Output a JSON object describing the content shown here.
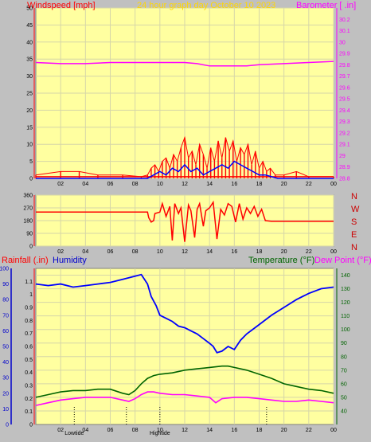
{
  "header": {
    "windspeed_label": "Windspeed [mph]",
    "title": "24 hour graph day   October 10 2023",
    "barometer_label": "Barometer [ .in]"
  },
  "colors": {
    "background": "#c0c0c0",
    "plot_bg": "#ffffa0",
    "grid": "#d6d6a8",
    "windspeed": "#ff0000",
    "windspeed_avg": "#0000ff",
    "barometer": "#ff00ff",
    "rainfall": "#ff0000",
    "humidity": "#0000ff",
    "temperature": "#006400",
    "dew_point": "#ff00ff",
    "title_yellow": "#ffd700"
  },
  "bottom": {
    "rainfall_label": "Rainfall (.in)",
    "humidity_label": "Humidity",
    "temperature_label": "Temperature (°F)",
    "dew_point_label": "Dew Point (°F)",
    "lowtide_label": "Lowtide",
    "hightide_label": "Hightide"
  },
  "chart_data": [
    {
      "type": "line",
      "name": "Windspeed / Barometer",
      "x_ticks": [
        "02",
        "04",
        "06",
        "08",
        "10",
        "12",
        "14",
        "16",
        "18",
        "20",
        "22",
        "00"
      ],
      "y_left": {
        "label": "Windspeed [mph]",
        "lim": [
          0,
          50
        ],
        "ticks": [
          0,
          5,
          10,
          15,
          20,
          25,
          30,
          35,
          40,
          45,
          50
        ]
      },
      "y_right": {
        "label": "Barometer [ .in]",
        "lim": [
          28.8,
          30.3
        ],
        "ticks": [
          "28.8",
          "28.9",
          "29",
          "29.1",
          "29.2",
          "29.3",
          "29.4",
          "29.5",
          "29.6",
          "29.7",
          "29.8",
          "29.9",
          "30",
          "30.1",
          "30.2"
        ]
      },
      "barometer": {
        "x": [
          0,
          2,
          4,
          6,
          8,
          10,
          12,
          13,
          14,
          15,
          16,
          17,
          18,
          20,
          22,
          24
        ],
        "y": [
          29.82,
          29.81,
          29.81,
          29.82,
          29.82,
          29.82,
          29.82,
          29.81,
          29.79,
          29.79,
          29.79,
          29.79,
          29.8,
          29.81,
          29.82,
          29.83
        ]
      },
      "windspeed_gust": {
        "x": [
          0,
          2,
          3.5,
          5,
          7,
          8.5,
          9,
          9.3,
          9.6,
          9.9,
          10.2,
          10.5,
          10.8,
          11.1,
          11.4,
          11.7,
          12,
          12.3,
          12.6,
          12.9,
          13.2,
          13.5,
          13.8,
          14.1,
          14.4,
          14.7,
          15,
          15.3,
          15.6,
          15.9,
          16.2,
          16.5,
          16.8,
          17.1,
          17.4,
          17.7,
          18,
          18.3,
          18.6,
          18.9,
          19.3,
          20,
          21,
          22,
          24
        ],
        "y": [
          1,
          2,
          2,
          1,
          1,
          0.5,
          1,
          3,
          4,
          2,
          5,
          6,
          3,
          7,
          5,
          9,
          12,
          6,
          8,
          4,
          10,
          7,
          3,
          9,
          5,
          11,
          6,
          12,
          8,
          11,
          5,
          9,
          7,
          10,
          4,
          8,
          3,
          5,
          2,
          3,
          1,
          1,
          2,
          0.5,
          0.5
        ]
      },
      "windspeed_avg": {
        "x": [
          0,
          9,
          9.5,
          10,
          10.5,
          11,
          11.5,
          12,
          12.5,
          13,
          13.5,
          14,
          14.5,
          15,
          15.5,
          16,
          16.5,
          17,
          17.5,
          18,
          18.5,
          19,
          19.5,
          24
        ],
        "y": [
          0,
          0,
          1,
          2,
          1,
          3,
          2,
          4,
          2,
          3,
          1,
          2,
          3,
          4,
          3,
          5,
          4,
          3,
          2,
          1,
          1,
          0.5,
          0,
          0
        ]
      }
    },
    {
      "type": "line",
      "name": "Wind direction",
      "x_ticks": [
        "02",
        "04",
        "06",
        "08",
        "10",
        "12",
        "14",
        "16",
        "18",
        "20",
        "22",
        "00"
      ],
      "y_left": {
        "lim": [
          0,
          360
        ],
        "ticks": [
          0,
          90,
          180,
          270,
          360
        ]
      },
      "y_right_labels": [
        "N",
        "W",
        "S",
        "E",
        "N"
      ],
      "direction": {
        "x": [
          0,
          9,
          9.1,
          9.3,
          9.5,
          9.6,
          10,
          10.2,
          10.5,
          10.8,
          11,
          11.2,
          11.5,
          11.7,
          12,
          12.3,
          12.5,
          12.8,
          13,
          13.2,
          13.5,
          13.7,
          14,
          14.3,
          14.6,
          14.9,
          15.2,
          15.5,
          15.8,
          16.1,
          16.4,
          16.7,
          17,
          17.3,
          17.6,
          17.9,
          18.2,
          18.5,
          19,
          20,
          22,
          24
        ],
        "y": [
          240,
          240,
          200,
          170,
          180,
          230,
          240,
          300,
          210,
          280,
          40,
          300,
          230,
          270,
          30,
          290,
          250,
          60,
          260,
          300,
          140,
          250,
          270,
          310,
          50,
          260,
          220,
          300,
          280,
          170,
          300,
          190,
          270,
          230,
          280,
          210,
          260,
          180,
          175,
          175,
          175,
          175
        ]
      }
    },
    {
      "type": "line",
      "name": "Rainfall / Humidity / Temperature / Dew Point",
      "x_ticks": [
        "02",
        "04",
        "06",
        "08",
        "10",
        "12",
        "14",
        "16",
        "18",
        "20",
        "22",
        "00"
      ],
      "y_left_humidity": {
        "lim": [
          0,
          100
        ],
        "ticks": [
          0,
          10,
          20,
          30,
          40,
          50,
          60,
          70,
          80,
          90,
          100
        ]
      },
      "y_left_rainfall": {
        "lim": [
          0,
          1.2
        ],
        "ticks": [
          "0",
          "0.1",
          "0.2",
          "0.3",
          "0.4",
          "0.5",
          "0.6",
          "0.7",
          "0.8",
          "0.9",
          "1",
          "1.1"
        ]
      },
      "y_right_temperature": {
        "lim": [
          30,
          145
        ],
        "ticks": [
          40,
          50,
          60,
          70,
          80,
          90,
          100,
          110,
          120,
          130,
          140
        ]
      },
      "humidity": {
        "x": [
          0,
          1,
          2,
          3,
          4,
          5,
          6,
          7,
          7.5,
          8,
          8.5,
          9,
          9.3,
          9.7,
          10,
          10.5,
          11,
          11.5,
          12,
          12.5,
          13,
          13.5,
          14,
          14.3,
          14.6,
          15,
          15.5,
          16,
          16.5,
          17,
          18,
          19,
          20,
          21,
          22,
          23,
          24
        ],
        "y": [
          90,
          89,
          90,
          88,
          89,
          90,
          91,
          93,
          94,
          95,
          96,
          90,
          82,
          76,
          70,
          68,
          66,
          63,
          62,
          60,
          58,
          55,
          52,
          50,
          46,
          47,
          50,
          48,
          54,
          58,
          64,
          70,
          75,
          80,
          84,
          87,
          88
        ]
      },
      "temperature": {
        "x": [
          0,
          1,
          2,
          3,
          4,
          5,
          6,
          7,
          7.5,
          8,
          8.5,
          9,
          9.5,
          10,
          11,
          12,
          13,
          14,
          15,
          15.5,
          16,
          17,
          18,
          19,
          20,
          21,
          22,
          23,
          24
        ],
        "y": [
          50,
          52,
          54,
          55,
          55,
          56,
          56,
          53,
          52,
          55,
          60,
          64,
          66,
          67,
          68,
          70,
          71,
          72,
          73,
          73,
          72,
          70,
          67,
          64,
          60,
          58,
          56,
          55,
          53
        ]
      },
      "dew_point": {
        "x": [
          0,
          1,
          2,
          3,
          4,
          5,
          6,
          7,
          7.5,
          8,
          8.5,
          9,
          9.5,
          10,
          11,
          12,
          13,
          14,
          14.5,
          15,
          16,
          17,
          18,
          19,
          20,
          21,
          22,
          23,
          24
        ],
        "y": [
          44,
          46,
          48,
          49,
          50,
          50,
          50,
          48,
          47,
          49,
          52,
          54,
          54,
          53,
          52,
          52,
          51,
          50,
          46,
          49,
          50,
          50,
          49,
          48,
          47,
          47,
          48,
          47,
          46
        ]
      },
      "tides": [
        {
          "kind": "Lowtide",
          "x": 3.1
        },
        {
          "kind": "Lowtide",
          "x": 7.3
        },
        {
          "kind": "Hightide",
          "x": 10.0
        },
        {
          "kind": "Hightide",
          "x": 18.6
        }
      ]
    }
  ]
}
